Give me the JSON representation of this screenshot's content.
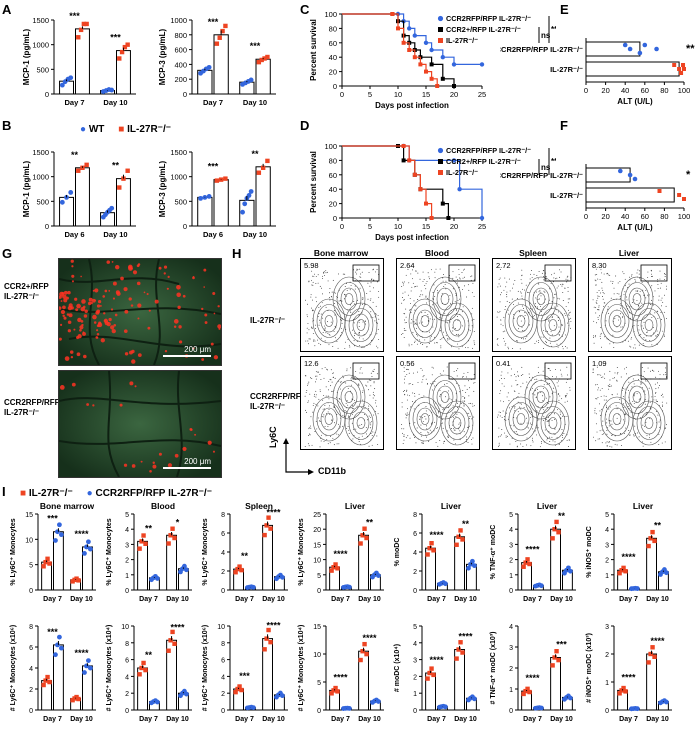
{
  "panel_labels": [
    "A",
    "B",
    "C",
    "D",
    "E",
    "F",
    "G",
    "H",
    "I"
  ],
  "colors": {
    "wt": "#3366dd",
    "ko": "#ee4422",
    "ccr2_het": "#000000"
  },
  "legend_B": {
    "wt": "WT",
    "ko": "IL-27R⁻/⁻"
  },
  "legend_I": {
    "ko": "IL-27R⁻/⁻",
    "ccr2": "CCR2RFP/RFP IL-27R⁻/⁻"
  },
  "survival_legend": [
    "CCR2RFP/RFP IL-27R⁻/⁻",
    "CCR2+/RFP IL-27R⁻/⁻",
    "IL-27R⁻/⁻"
  ],
  "survival_stats": {
    "ns": "ns",
    "sig": "**"
  },
  "panel_G": {
    "top_label_1": "CCR2+/RFP",
    "top_label_2": "IL-27R⁻/⁻",
    "bottom_label_1": "CCR2RFP/RFP",
    "bottom_label_2": "IL-27R⁻/⁻",
    "scale": "200 μm"
  },
  "panel_H": {
    "columns": [
      "Bone marrow",
      "Blood",
      "Spleen",
      "Liver"
    ],
    "row1_label": "IL-27R⁻/⁻",
    "row2_label_1": "CCR2RFP/RFP",
    "row2_label_2": "IL-27R⁻/⁻",
    "row1_pcts": [
      "5.98",
      "2.64",
      "2.72",
      "8.30"
    ],
    "row2_pcts": [
      "12.6",
      "0.56",
      "0.41",
      "1.09"
    ],
    "x_axis": "CD11b",
    "y_axis": "Ly6C"
  },
  "chart_data": [
    {
      "id": "A1",
      "type": "bar",
      "categories": [
        "Day 7",
        "Day 10"
      ],
      "ylabel": "MCP-1 (pg/mL)",
      "ylim": [
        0,
        1500
      ],
      "yticks": [
        0,
        500,
        1000,
        1500
      ],
      "series": [
        {
          "name": "WT",
          "values": [
            260,
            70
          ],
          "points": [
            [
              180,
              250,
              300,
              330
            ],
            [
              50,
              70,
              90,
              80
            ]
          ]
        },
        {
          "name": "IL-27R⁻/⁻",
          "values": [
            1320,
            880
          ],
          "points": [
            [
              1150,
              1300,
              1420,
              1420
            ],
            [
              720,
              850,
              950,
              1000
            ]
          ]
        }
      ],
      "annotations": [
        "***",
        "***"
      ]
    },
    {
      "id": "A2",
      "type": "bar",
      "categories": [
        "Day 7",
        "Day 10"
      ],
      "ylabel": "MCP-3 (pg/mL)",
      "ylim": [
        0,
        1000
      ],
      "yticks": [
        0,
        200,
        400,
        600,
        800,
        1000
      ],
      "series": [
        {
          "name": "WT",
          "values": [
            320,
            160
          ],
          "points": [
            [
              280,
              310,
              340,
              360
            ],
            [
              130,
              150,
              170,
              190
            ]
          ]
        },
        {
          "name": "IL-27R⁻/⁻",
          "values": [
            800,
            470
          ],
          "points": [
            [
              680,
              760,
              850,
              920
            ],
            [
              430,
              460,
              480,
              500
            ]
          ]
        }
      ],
      "annotations": [
        "***",
        "***"
      ]
    },
    {
      "id": "B1",
      "type": "bar",
      "categories": [
        "Day 6",
        "Day 10"
      ],
      "ylabel": "MCP-1 (pg/mL)",
      "ylim": [
        0,
        1500
      ],
      "yticks": [
        0,
        500,
        1000,
        1500
      ],
      "series": [
        {
          "name": "WT",
          "values": [
            580,
            270
          ],
          "points": [
            [
              480,
              580,
              680
            ],
            [
              180,
              230,
              280,
              320,
              360
            ]
          ]
        },
        {
          "name": "IL-27R⁻/⁻",
          "values": [
            1180,
            960
          ],
          "points": [
            [
              1120,
              1180,
              1240
            ],
            [
              780,
              960,
              1120
            ]
          ]
        }
      ],
      "annotations": [
        "**",
        "**"
      ]
    },
    {
      "id": "B2",
      "type": "bar",
      "categories": [
        "Day 6",
        "Day 10"
      ],
      "ylabel": "MCP-3 (pg/mL)",
      "ylim": [
        0,
        1500
      ],
      "yticks": [
        0,
        500,
        1000,
        1500
      ],
      "series": [
        {
          "name": "WT",
          "values": [
            580,
            520
          ],
          "points": [
            [
              560,
              580,
              600
            ],
            [
              280,
              450,
              560,
              620,
              700
            ]
          ]
        },
        {
          "name": "IL-27R⁻/⁻",
          "values": [
            940,
            1200
          ],
          "points": [
            [
              920,
              940,
              960
            ],
            [
              1080,
              1180,
              1320
            ]
          ]
        }
      ],
      "annotations": [
        "***",
        "**"
      ]
    },
    {
      "id": "C",
      "type": "line",
      "xlabel": "Days post infection",
      "ylabel": "Percent survival",
      "xlim": [
        0,
        25
      ],
      "ylim": [
        0,
        100
      ],
      "xticks": [
        0,
        5,
        10,
        15,
        20,
        25
      ],
      "yticks": [
        0,
        20,
        40,
        60,
        80,
        100
      ],
      "series": [
        {
          "name": "CCR2RFP/RFP IL-27R⁻/⁻",
          "x": [
            0,
            10,
            11,
            12,
            13,
            15,
            16,
            18,
            20,
            25
          ],
          "y": [
            100,
            100,
            90,
            80,
            70,
            60,
            50,
            40,
            30,
            30
          ]
        },
        {
          "name": "CCR2+/RFP IL-27R⁻/⁻",
          "x": [
            0,
            9,
            10,
            11,
            12,
            13,
            14,
            16,
            18,
            20
          ],
          "y": [
            100,
            100,
            90,
            70,
            60,
            50,
            40,
            30,
            10,
            0
          ]
        },
        {
          "name": "IL-27R⁻/⁻",
          "x": [
            0,
            9,
            10,
            11,
            12,
            13,
            14,
            15,
            16,
            17
          ],
          "y": [
            100,
            100,
            80,
            60,
            50,
            40,
            30,
            20,
            10,
            0
          ]
        }
      ]
    },
    {
      "id": "D",
      "type": "line",
      "xlabel": "Days post infection",
      "ylabel": "Percent survival",
      "xlim": [
        0,
        25
      ],
      "ylim": [
        0,
        100
      ],
      "xticks": [
        0,
        5,
        10,
        15,
        20,
        25
      ],
      "yticks": [
        0,
        20,
        40,
        60,
        80,
        100
      ],
      "series": [
        {
          "name": "CCR2RFP/RFP IL-27R⁻/⁻",
          "x": [
            0,
            11,
            12,
            20,
            21,
            25
          ],
          "y": [
            100,
            100,
            80,
            80,
            40,
            0
          ]
        },
        {
          "name": "CCR2+/RFP IL-27R⁻/⁻",
          "x": [
            0,
            10,
            11,
            13,
            14,
            18,
            19
          ],
          "y": [
            100,
            100,
            80,
            60,
            40,
            20,
            0
          ]
        },
        {
          "name": "IL-27R⁻/⁻",
          "x": [
            0,
            11,
            12,
            13,
            14,
            15,
            16
          ],
          "y": [
            100,
            100,
            80,
            60,
            40,
            20,
            0
          ]
        }
      ]
    },
    {
      "id": "E",
      "type": "bar",
      "orientation": "horizontal",
      "categories": [
        "CCR2RFP/RFP IL-27R⁻/⁻",
        "IL-27R⁻/⁻"
      ],
      "xlabel": "ALT (U/L)",
      "xlim": [
        0,
        100
      ],
      "xticks": [
        0,
        20,
        40,
        60,
        80,
        100
      ],
      "series": [
        {
          "name": "ALT",
          "values": [
            55,
            95
          ],
          "points": [
            [
              40,
              45,
              55,
              60,
              72
            ],
            [
              90,
              95,
              97,
              99,
              100
            ]
          ]
        }
      ],
      "annotations": [
        "**",
        ""
      ]
    },
    {
      "id": "F",
      "type": "bar",
      "orientation": "horizontal",
      "categories": [
        "CCR2RFP/RFP IL-27R⁻/⁻",
        "IL-27R⁻/⁻"
      ],
      "xlabel": "ALT (U/L)",
      "xlim": [
        0,
        100
      ],
      "xticks": [
        0,
        20,
        40,
        60,
        80,
        100
      ],
      "series": [
        {
          "name": "ALT",
          "values": [
            45,
            90
          ],
          "points": [
            [
              35,
              45,
              50
            ],
            [
              75,
              95,
              100
            ]
          ]
        }
      ],
      "annotations": [
        "*",
        ""
      ]
    },
    {
      "id": "I1",
      "type": "bar",
      "title": "Bone marrow",
      "categories": [
        "Day 7",
        "Day 10"
      ],
      "ylabel": "% Ly6C⁺ Monocytes",
      "ylim": [
        0,
        15
      ],
      "yticks": [
        0,
        5,
        10,
        15
      ],
      "series": [
        {
          "name": "IL-27R⁻/⁻",
          "values": [
            5.5,
            2
          ]
        },
        {
          "name": "CCR2RFP/RFP IL-27R⁻/⁻",
          "values": [
            11.5,
            8.5
          ]
        }
      ],
      "annotations": [
        "***",
        "****"
      ]
    },
    {
      "id": "I2",
      "type": "bar",
      "title": "Blood",
      "categories": [
        "Day 7",
        "Day 10"
      ],
      "ylabel": "% Ly6C⁺ Monocytes",
      "ylim": [
        0,
        5
      ],
      "yticks": [
        0,
        1,
        2,
        3,
        4,
        5
      ],
      "series": [
        {
          "name": "IL-27R⁻/⁻",
          "values": [
            3.2,
            3.6
          ]
        },
        {
          "name": "CCR2RFP/RFP IL-27R⁻/⁻",
          "values": [
            0.8,
            1.4
          ]
        }
      ],
      "annotations": [
        "**",
        "*"
      ]
    },
    {
      "id": "I3",
      "type": "bar",
      "title": "Spleen",
      "categories": [
        "Day 7",
        "Day 10"
      ],
      "ylabel": "% Ly6C⁺ Monocytes",
      "ylim": [
        0,
        8
      ],
      "yticks": [
        0,
        2,
        4,
        6,
        8
      ],
      "series": [
        {
          "name": "IL-27R⁻/⁻",
          "values": [
            2.2,
            6.8
          ]
        },
        {
          "name": "CCR2RFP/RFP IL-27R⁻/⁻",
          "values": [
            0.3,
            1.4
          ]
        }
      ],
      "annotations": [
        "**",
        "****"
      ]
    },
    {
      "id": "I4",
      "type": "bar",
      "title": "Liver",
      "categories": [
        "Day 7",
        "Day 10"
      ],
      "ylabel": "% Ly6C⁺ Monocytes",
      "ylim": [
        0,
        25
      ],
      "yticks": [
        0,
        5,
        10,
        15,
        20,
        25
      ],
      "series": [
        {
          "name": "IL-27R⁻/⁻",
          "values": [
            7.5,
            18
          ]
        },
        {
          "name": "CCR2RFP/RFP IL-27R⁻/⁻",
          "values": [
            1,
            5
          ]
        }
      ],
      "annotations": [
        "****",
        "**"
      ]
    },
    {
      "id": "I5",
      "type": "bar",
      "title": "Liver",
      "categories": [
        "Day 7",
        "Day 10"
      ],
      "ylabel": "% moDC",
      "ylim": [
        0,
        8
      ],
      "yticks": [
        0,
        2,
        4,
        6,
        8
      ],
      "series": [
        {
          "name": "IL-27R⁻/⁻",
          "values": [
            4.4,
            5.6
          ]
        },
        {
          "name": "CCR2RFP/RFP IL-27R⁻/⁻",
          "values": [
            0.7,
            2.7
          ]
        }
      ],
      "annotations": [
        "****",
        "**"
      ]
    },
    {
      "id": "I6",
      "type": "bar",
      "title": "Liver",
      "categories": [
        "Day 7",
        "Day 10"
      ],
      "ylabel": "% TNF-α⁺ moDC",
      "ylim": [
        0,
        5
      ],
      "yticks": [
        0,
        1,
        2,
        3,
        4,
        5
      ],
      "series": [
        {
          "name": "IL-27R⁻/⁻",
          "values": [
            1.8,
            4
          ]
        },
        {
          "name": "CCR2RFP/RFP IL-27R⁻/⁻",
          "values": [
            0.3,
            1.3
          ]
        }
      ],
      "annotations": [
        "****",
        "**"
      ]
    },
    {
      "id": "I7",
      "type": "bar",
      "title": "Liver",
      "categories": [
        "Day 7",
        "Day 10"
      ],
      "ylabel": "% iNOS⁺ moDC",
      "ylim": [
        0,
        5
      ],
      "yticks": [
        0,
        1,
        2,
        3,
        4,
        5
      ],
      "series": [
        {
          "name": "IL-27R⁻/⁻",
          "values": [
            1.3,
            3.4
          ]
        },
        {
          "name": "CCR2RFP/RFP IL-27R⁻/⁻",
          "values": [
            0.1,
            1.2
          ]
        }
      ],
      "annotations": [
        "****",
        "**"
      ]
    },
    {
      "id": "I8",
      "type": "bar",
      "categories": [
        "Day 7",
        "Day 10"
      ],
      "ylabel": "# Ly6C⁺ Monocytes (x10⁶)",
      "ylim": [
        0,
        8
      ],
      "yticks": [
        0,
        2,
        4,
        6,
        8
      ],
      "series": [
        {
          "name": "IL-27R⁻/⁻",
          "values": [
            2.8,
            1.1
          ]
        },
        {
          "name": "CCR2RFP/RFP IL-27R⁻/⁻",
          "values": [
            6.2,
            4.2
          ]
        }
      ],
      "annotations": [
        "***",
        "****"
      ]
    },
    {
      "id": "I9",
      "type": "bar",
      "categories": [
        "Day 7",
        "Day 10"
      ],
      "ylabel": "# Ly6C⁺ Monocytes (x10⁴)",
      "ylim": [
        0,
        10
      ],
      "yticks": [
        0,
        2,
        4,
        6,
        8,
        10
      ],
      "series": [
        {
          "name": "IL-27R⁻/⁻",
          "values": [
            5,
            8.3
          ]
        },
        {
          "name": "CCR2RFP/RFP IL-27R⁻/⁻",
          "values": [
            1,
            2
          ]
        }
      ],
      "annotations": [
        "**",
        "****"
      ]
    },
    {
      "id": "I10",
      "type": "bar",
      "categories": [
        "Day 7",
        "Day 10"
      ],
      "ylabel": "# Ly6C⁺ Monocytes (x10⁶)",
      "ylim": [
        0,
        10
      ],
      "yticks": [
        0,
        2,
        4,
        6,
        8,
        10
      ],
      "series": [
        {
          "name": "IL-27R⁻/⁻",
          "values": [
            2.5,
            8.5
          ]
        },
        {
          "name": "CCR2RFP/RFP IL-27R⁻/⁻",
          "values": [
            0.3,
            1.8
          ]
        }
      ],
      "annotations": [
        "***",
        "****"
      ]
    },
    {
      "id": "I11",
      "type": "bar",
      "categories": [
        "Day 7",
        "Day 10"
      ],
      "ylabel": "# Ly6C⁺ Monocytes (x10⁴)",
      "ylim": [
        0,
        15
      ],
      "yticks": [
        0,
        5,
        10,
        15
      ],
      "series": [
        {
          "name": "IL-27R⁻/⁻",
          "values": [
            3.5,
            10.5
          ]
        },
        {
          "name": "CCR2RFP/RFP IL-27R⁻/⁻",
          "values": [
            0.3,
            1.6
          ]
        }
      ],
      "annotations": [
        "****",
        "****"
      ]
    },
    {
      "id": "I12",
      "type": "bar",
      "categories": [
        "Day 7",
        "Day 10"
      ],
      "ylabel": "# moDC (x10⁴)",
      "ylim": [
        0,
        5
      ],
      "yticks": [
        0,
        1,
        2,
        3,
        4,
        5
      ],
      "series": [
        {
          "name": "IL-27R⁻/⁻",
          "values": [
            2.2,
            3.6
          ]
        },
        {
          "name": "CCR2RFP/RFP IL-27R⁻/⁻",
          "values": [
            0.2,
            0.7
          ]
        }
      ],
      "annotations": [
        "****",
        "****"
      ]
    },
    {
      "id": "I13",
      "type": "bar",
      "categories": [
        "Day 7",
        "Day 10"
      ],
      "ylabel": "# TNF-α⁺ moDC (x10³)",
      "ylim": [
        0,
        4
      ],
      "yticks": [
        0,
        1,
        2,
        3,
        4
      ],
      "series": [
        {
          "name": "IL-27R⁻/⁻",
          "values": [
            0.9,
            2.5
          ]
        },
        {
          "name": "CCR2RFP/RFP IL-27R⁻/⁻",
          "values": [
            0.1,
            0.6
          ]
        }
      ],
      "annotations": [
        "****",
        "***"
      ]
    },
    {
      "id": "I14",
      "type": "bar",
      "categories": [
        "Day 7",
        "Day 10"
      ],
      "ylabel": "# iNOS⁺ moDC (x10³)",
      "ylim": [
        0,
        3
      ],
      "yticks": [
        0,
        1,
        2,
        3
      ],
      "series": [
        {
          "name": "IL-27R⁻/⁻",
          "values": [
            0.7,
            2
          ]
        },
        {
          "name": "CCR2RFP/RFP IL-27R⁻/⁻",
          "values": [
            0.05,
            0.3
          ]
        }
      ],
      "annotations": [
        "****",
        "****"
      ]
    }
  ]
}
